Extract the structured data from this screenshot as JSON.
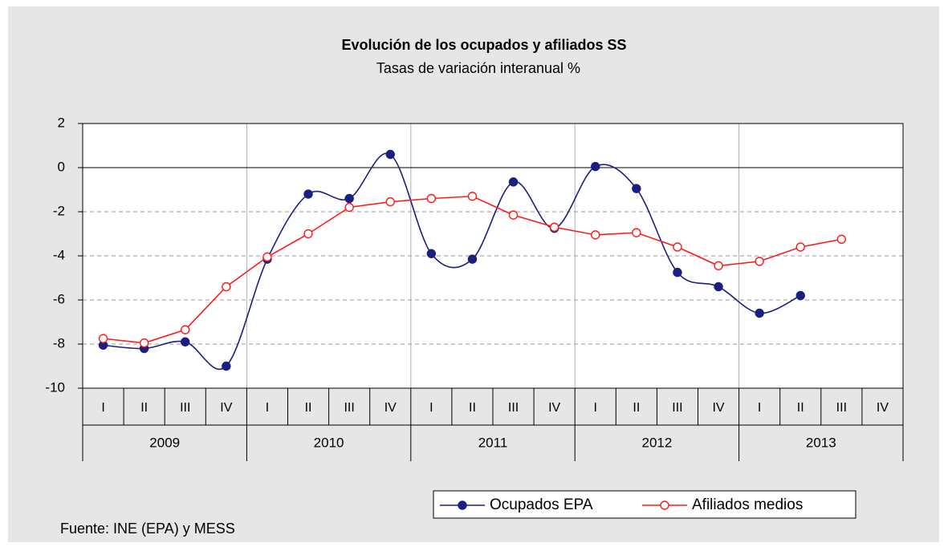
{
  "chart_data": {
    "type": "line",
    "title": "Evolución de los ocupados y afiliados SS",
    "subtitle": "Tasas de variación interanual  %",
    "categories": [
      "I",
      "II",
      "III",
      "IV",
      "I",
      "II",
      "III",
      "IV",
      "I",
      "II",
      "III",
      "IV",
      "I",
      "II",
      "III",
      "IV",
      "I",
      "II",
      "III",
      "IV"
    ],
    "category_groups": [
      "2009",
      "2010",
      "2011",
      "2012",
      "2013"
    ],
    "series": [
      {
        "name": "Ocupados EPA",
        "color": "#1a1f80",
        "marker": "filled",
        "smooth": true,
        "values": [
          -8.05,
          -8.2,
          -7.9,
          -9.0,
          -4.15,
          -1.2,
          -1.4,
          0.6,
          -3.9,
          -4.15,
          -0.65,
          -2.75,
          0.05,
          -0.95,
          -4.75,
          -5.4,
          -6.6,
          -5.8,
          null,
          null
        ]
      },
      {
        "name": "Afiliados medios",
        "color": "#ff1a1a",
        "marker": "open",
        "smooth": false,
        "values": [
          -7.75,
          -7.95,
          -7.35,
          -5.4,
          -4.05,
          -3.0,
          -1.8,
          -1.55,
          -1.4,
          -1.3,
          -2.15,
          -2.7,
          -3.05,
          -2.95,
          -3.6,
          -4.45,
          -4.25,
          -3.6,
          -3.25,
          null
        ]
      }
    ],
    "ylim": [
      -10,
      2
    ],
    "yticks": [
      -10,
      -8,
      -6,
      -4,
      -2,
      0,
      2
    ],
    "grid": true,
    "source": "Fuente: INE (EPA) y MESS"
  }
}
